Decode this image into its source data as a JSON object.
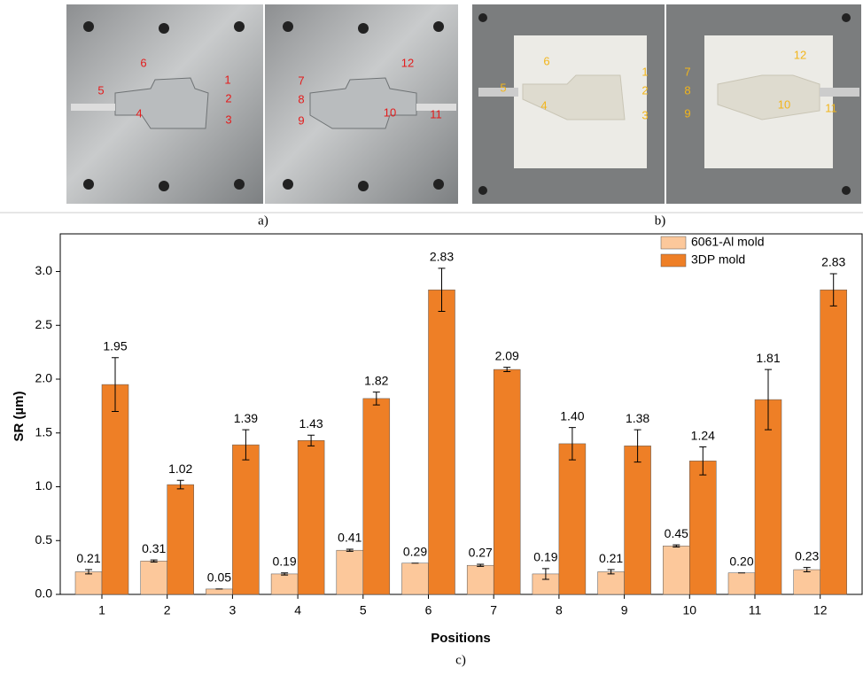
{
  "panel_a": {
    "caption": "a)",
    "labels": [
      "1",
      "2",
      "3",
      "4",
      "5",
      "6",
      "7",
      "8",
      "9",
      "10",
      "11",
      "12"
    ]
  },
  "panel_b": {
    "caption": "b)",
    "labels": [
      "1",
      "2",
      "3",
      "4",
      "5",
      "6",
      "7",
      "8",
      "9",
      "10",
      "11",
      "12"
    ]
  },
  "panel_c": {
    "caption": "c)"
  },
  "chart_data": {
    "type": "bar",
    "x_label": "Positions",
    "y_label": "SR (µm)",
    "categories": [
      "1",
      "2",
      "3",
      "4",
      "5",
      "6",
      "7",
      "8",
      "9",
      "10",
      "11",
      "12"
    ],
    "series": [
      {
        "name": "6061-Al mold",
        "color": "#fcc89b",
        "values": [
          0.21,
          0.31,
          0.05,
          0.19,
          0.41,
          0.29,
          0.27,
          0.19,
          0.21,
          0.45,
          0.2,
          0.23
        ],
        "value_labels": [
          "0.21",
          "0.31",
          "0.05",
          "0.19",
          "0.41",
          "0.29",
          "0.27",
          "0.19",
          "0.21",
          "0.45",
          "0.20",
          "0.23"
        ],
        "errors": [
          0.02,
          0.01,
          0,
          0.01,
          0.01,
          0,
          0.01,
          0.05,
          0.02,
          0.01,
          0,
          0.02
        ]
      },
      {
        "name": "3DP mold",
        "color": "#ee7f26",
        "values": [
          1.95,
          1.02,
          1.39,
          1.43,
          1.82,
          2.83,
          2.09,
          1.4,
          1.38,
          1.24,
          1.81,
          2.83
        ],
        "value_labels": [
          "1.95",
          "1.02",
          "1.39",
          "1.43",
          "1.82",
          "2.83",
          "2.09",
          "1.40",
          "1.38",
          "1.24",
          "1.81",
          "2.83"
        ],
        "errors": [
          0.25,
          0.04,
          0.14,
          0.05,
          0.06,
          0.2,
          0.02,
          0.15,
          0.15,
          0.13,
          0.28,
          0.15
        ]
      }
    ],
    "ylim": [
      0,
      3.35
    ],
    "yticks": [
      {
        "value": 0,
        "label": "0.0"
      },
      0.5,
      {
        "value": 1,
        "label": "1.0"
      },
      1.5,
      {
        "value": 2,
        "label": "2.0"
      },
      2.5,
      {
        "value": 3,
        "label": "3.0"
      }
    ],
    "legend": "top-right"
  }
}
